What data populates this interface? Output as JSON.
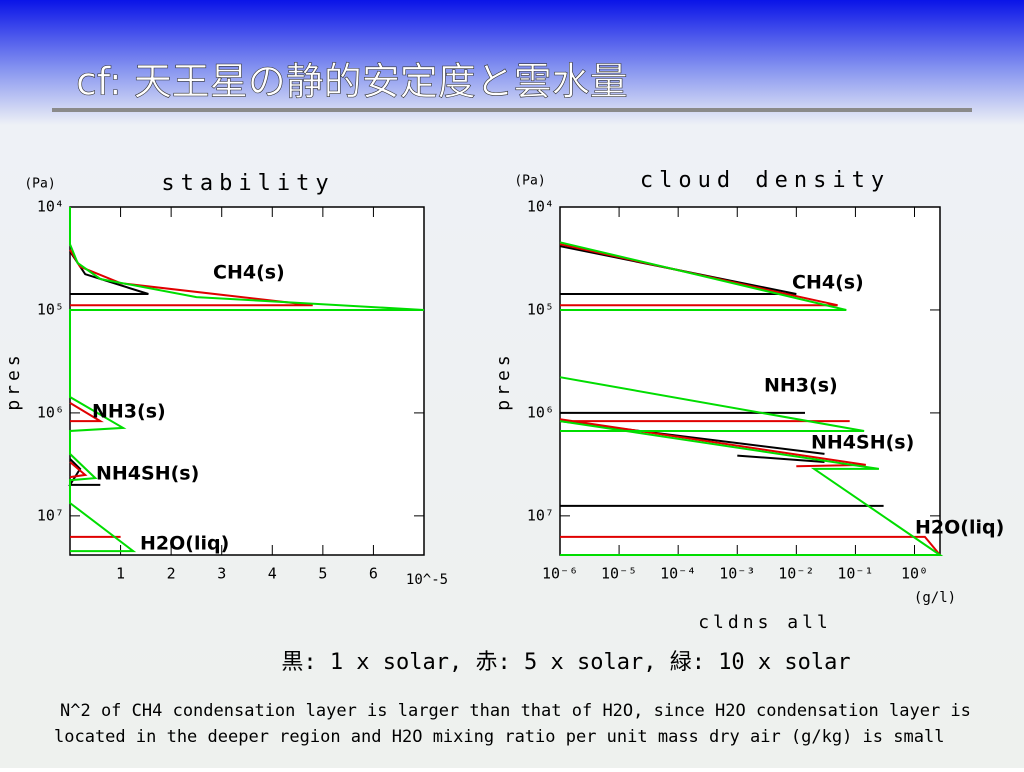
{
  "slide": {
    "title": "cf: 天王星の静的安定度と雲水量",
    "legend_note": "黒: 1 x solar, 赤: 5 x solar, 緑: 10 x solar",
    "caption": [
      "N^2 of CH4 condensation layer is larger than that of H2O, since H2O condensation layer is",
      "located in the deeper region and H2O mixing ratio per unit mass dry air (g/kg) is small"
    ]
  },
  "chart_data": [
    {
      "type": "line",
      "title": "stability",
      "y_unit": "(Pa)",
      "y_label": "pres",
      "x_unit": "10^-5",
      "xlim": [
        0,
        7
      ],
      "xticks": [
        1,
        2,
        3,
        4,
        5,
        6
      ],
      "x_log": false,
      "ylim": [
        10000,
        24000000
      ],
      "y_log": true,
      "y_inverted": true,
      "yticks": [
        {
          "value": 10000,
          "label": "10⁴"
        },
        {
          "value": 100000,
          "label": "10⁵"
        },
        {
          "value": 1000000,
          "label": "10⁶"
        },
        {
          "value": 10000000,
          "label": "10⁷"
        }
      ],
      "annotations": [
        "CH4(s)",
        "NH3(s)",
        "NH4SH(s)",
        "H2O(liq)"
      ],
      "series": [
        {
          "color": "#000000",
          "x": [
            0,
            0.3,
            1.55,
            0,
            null,
            0,
            0.2,
            0,
            0.6
          ],
          "y": [
            27000,
            45000,
            70000,
            70000,
            null,
            2800000,
            3500000,
            5000000,
            5000000
          ]
        },
        {
          "color": "#e00000",
          "x": [
            0,
            0.2,
            1,
            4.8,
            0,
            null,
            0,
            0.6,
            0,
            null,
            0,
            0.3,
            0,
            null,
            0,
            1.0
          ],
          "y": [
            26000,
            38000,
            55000,
            90000,
            90000,
            null,
            800000,
            1200000,
            1200000,
            null,
            3000000,
            4000000,
            4200000,
            null,
            16000000,
            16000000
          ]
        },
        {
          "color": "#00dd00",
          "x": [
            0,
            0,
            0.15,
            0.6,
            2.5,
            7,
            0,
            0,
            1.05,
            0,
            0,
            0.5,
            0,
            0,
            1.25,
            0
          ],
          "y": [
            10000,
            23000,
            35000,
            50000,
            75000,
            100000,
            100000,
            700000,
            1400000,
            1500000,
            2500000,
            4300000,
            4500000,
            7500000,
            22000000,
            22000000
          ]
        }
      ]
    },
    {
      "type": "line",
      "title": "cloud density",
      "y_unit": "(Pa)",
      "y_label": "pres",
      "x_label": "cldns all",
      "x_unit": "(g/l)",
      "xlim": [
        1e-06,
        2.7
      ],
      "x_log": true,
      "xticks": [
        {
          "value": 1e-06,
          "label": "10⁻⁶"
        },
        {
          "value": 1e-05,
          "label": "10⁻⁵"
        },
        {
          "value": 0.0001,
          "label": "10⁻⁴"
        },
        {
          "value": 0.001,
          "label": "10⁻³"
        },
        {
          "value": 0.01,
          "label": "10⁻²"
        },
        {
          "value": 0.1,
          "label": "10⁻¹"
        },
        {
          "value": 1,
          "label": "10⁰"
        }
      ],
      "ylim": [
        10000,
        24000000
      ],
      "y_log": true,
      "y_inverted": true,
      "yticks": [
        {
          "value": 10000,
          "label": "10⁴"
        },
        {
          "value": 100000,
          "label": "10⁵"
        },
        {
          "value": 1000000,
          "label": "10⁶"
        },
        {
          "value": 10000000,
          "label": "10⁷"
        }
      ],
      "annotations": [
        "CH4(s)",
        "NH3(s)",
        "NH4SH(s)",
        "H2O(liq)"
      ],
      "series": [
        {
          "color": "#000000",
          "x": [
            1e-06,
            0.01,
            1e-06,
            null,
            1e-06,
            0.014,
            null,
            1e-06,
            0.03,
            null,
            0.001,
            0.03,
            null,
            1e-06,
            0.3
          ],
          "y": [
            24000,
            70000,
            70000,
            null,
            1000000,
            1000000,
            null,
            1200000,
            2500000,
            null,
            2600000,
            3000000,
            null,
            8000000,
            8000000
          ]
        },
        {
          "color": "#e00000",
          "x": [
            1e-06,
            0.05,
            1e-06,
            null,
            1e-06,
            0.08,
            null,
            1e-06,
            0.15,
            0.01,
            null,
            1e-06,
            1.5,
            2.7
          ],
          "y": [
            23000,
            90000,
            90000,
            null,
            1200000,
            1200000,
            null,
            1150000,
            3200000,
            3300000,
            null,
            16000000,
            16000000,
            24000000
          ]
        },
        {
          "color": "#00dd00",
          "x": [
            1e-06,
            0.07,
            1e-06,
            null,
            1e-06,
            0.14,
            1e-06,
            null,
            1e-06,
            0.25,
            0.02,
            2.7,
            1e-06
          ],
          "y": [
            22000,
            100000,
            100000,
            null,
            450000,
            1500000,
            1500000,
            null,
            1200000,
            3500000,
            3500000,
            24000000,
            24000000
          ]
        }
      ]
    }
  ]
}
